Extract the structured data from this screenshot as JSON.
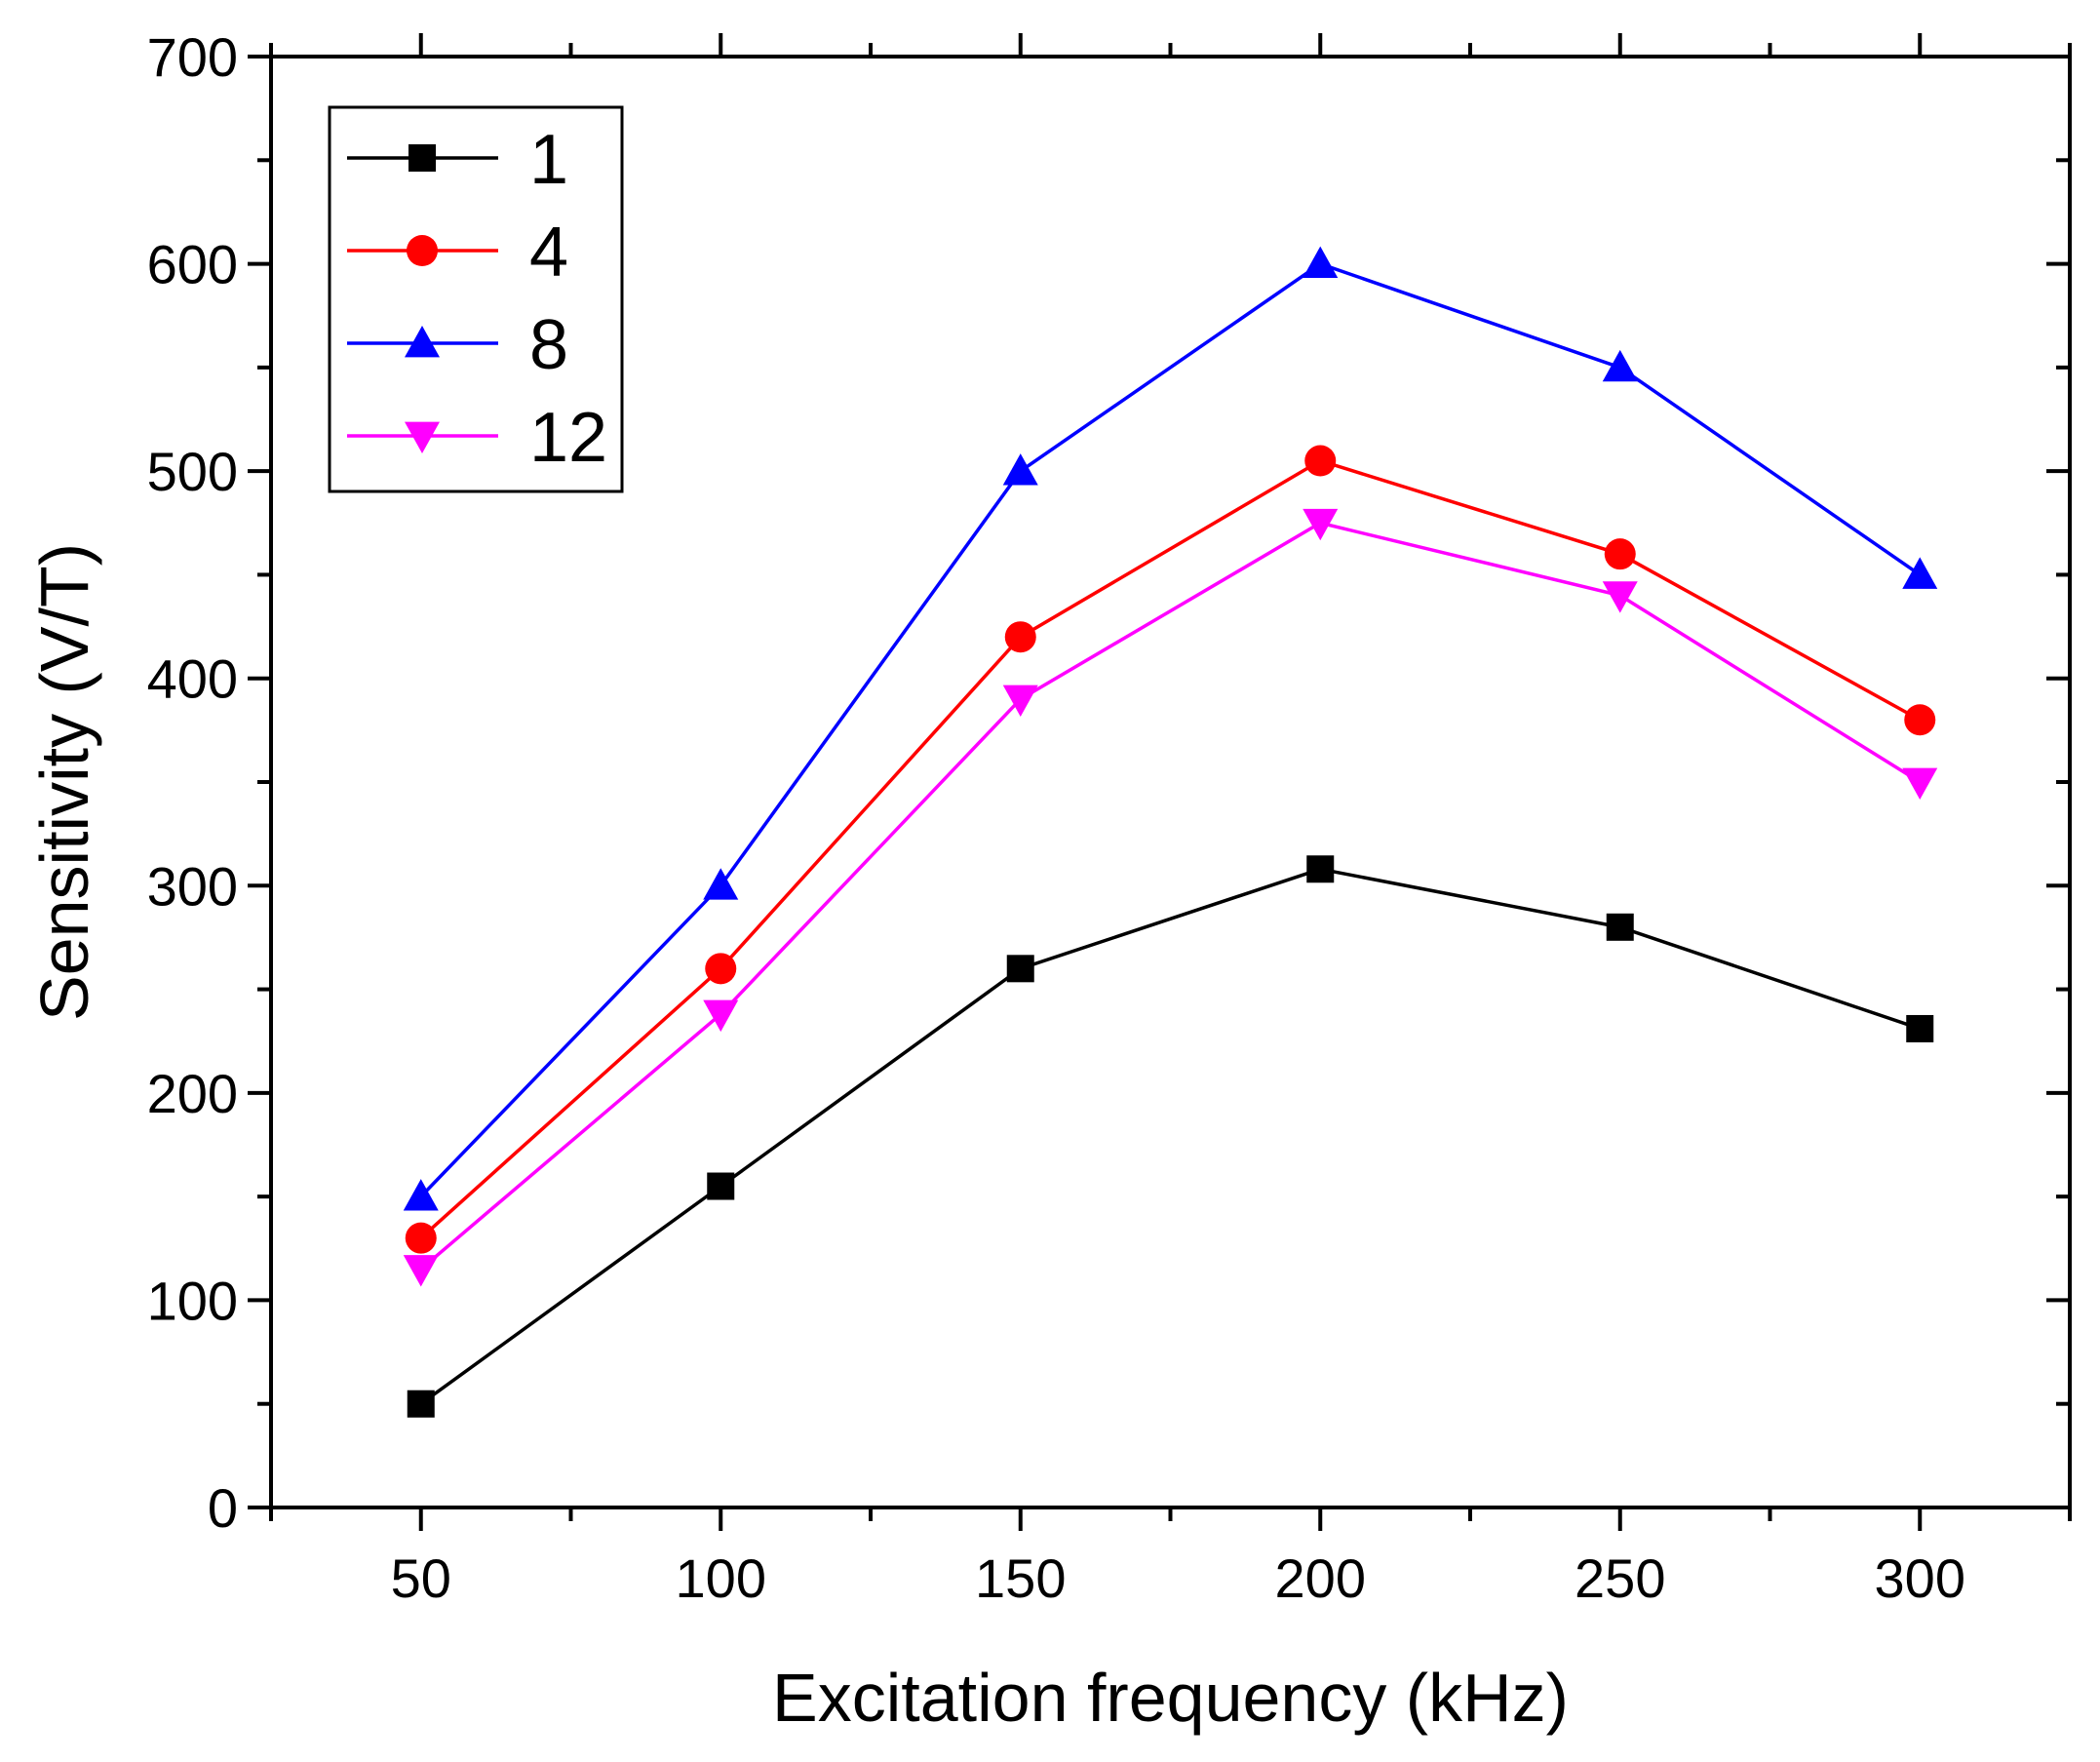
{
  "chart_data": {
    "type": "line",
    "title": "",
    "xlabel": "Excitation frequency (kHz)",
    "ylabel": "Sensitivity (V/T)",
    "xlim": [
      25,
      325
    ],
    "ylim": [
      0,
      700
    ],
    "xticks": [
      50,
      100,
      150,
      200,
      250,
      300
    ],
    "yticks": [
      0,
      100,
      200,
      300,
      400,
      500,
      600,
      700
    ],
    "grid": false,
    "legend_position": "top-left",
    "x": [
      50,
      100,
      150,
      200,
      250,
      300
    ],
    "series": [
      {
        "name": "1",
        "color": "#000000",
        "marker": "square",
        "values": [
          50,
          155,
          260,
          308,
          280,
          231
        ]
      },
      {
        "name": "4",
        "color": "#ff0000",
        "marker": "circle",
        "values": [
          130,
          260,
          420,
          505,
          460,
          380
        ]
      },
      {
        "name": "8",
        "color": "#0000ff",
        "marker": "triangle-up",
        "values": [
          150,
          300,
          500,
          600,
          550,
          450
        ]
      },
      {
        "name": "12",
        "color": "#ff00ff",
        "marker": "triangle-down",
        "values": [
          115,
          238,
          390,
          475,
          440,
          350
        ]
      }
    ]
  }
}
